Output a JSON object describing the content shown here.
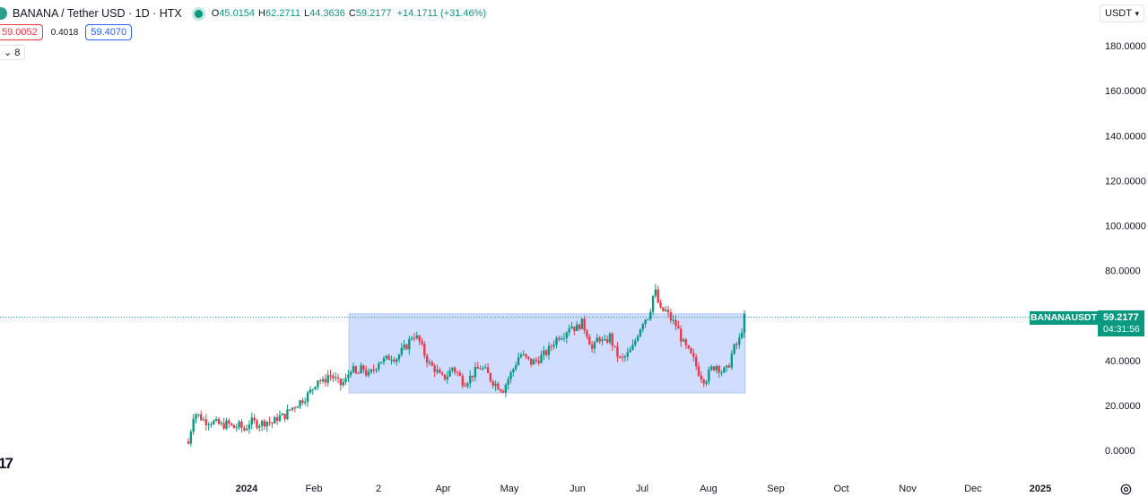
{
  "header": {
    "symbol_title": "BANANA / Tether USD · 1D · HTX",
    "ohlc": {
      "o_label": "O",
      "o_value": "45.0154",
      "h_label": "H",
      "h_value": "62.2711",
      "l_label": "L",
      "l_value": "44.3636",
      "c_label": "C",
      "c_value": "59.2177",
      "change": "+14.1711 (+31.46%)"
    }
  },
  "trade": {
    "sell_price": "59.0052",
    "spread": "0.4018",
    "buy_price": "59.4070"
  },
  "indicators_toggle": "8",
  "currency_button": "USDT",
  "price_tag": {
    "symbol": "BANANAUSDT",
    "price": "59.2177",
    "countdown": "04:31:56"
  },
  "logo_text": "17",
  "colors": {
    "up": "#089981",
    "down": "#f23645",
    "range_fill": "#2962ff",
    "grid": "#f0f3fa"
  },
  "icons": {
    "live": "live-dot-icon",
    "settings": "gear-icon",
    "caret": "chevron-down-icon",
    "symbol_logo": "banana-logo-icon"
  },
  "chart_data": {
    "type": "candlestick",
    "title": "BANANA / Tether USD · 1D · HTX",
    "y_axis": {
      "min": 0,
      "max": 180,
      "tick_labels": [
        "180.0000",
        "160.0000",
        "140.0000",
        "120.0000",
        "100.0000",
        "80.0000",
        "60.0000",
        "40.0000",
        "20.0000",
        "0.0000"
      ],
      "tick_values": [
        180,
        160,
        140,
        120,
        100,
        80,
        60,
        40,
        20,
        0
      ]
    },
    "x_axis": {
      "tick_labels": [
        "2024",
        "Feb",
        "2",
        "Apr",
        "May",
        "Jun",
        "Jul",
        "Aug",
        "Sep",
        "Oct",
        "Nov",
        "Dec",
        "2025"
      ]
    },
    "range_box": {
      "price_low": 25.5,
      "price_high": 60.8
    },
    "last_price": 59.2177,
    "grid": false,
    "series": [
      {
        "name": "BANANAUSDT",
        "close_path": [
          3,
          17,
          15,
          13,
          13,
          12,
          11,
          12,
          10,
          11,
          9,
          13,
          12,
          12,
          13,
          12,
          15,
          15,
          18,
          20,
          22,
          24,
          27,
          32,
          30,
          34,
          32,
          29,
          31,
          37,
          33,
          37,
          33,
          36,
          40,
          40,
          42,
          41,
          44,
          47,
          52,
          49,
          43,
          38,
          36,
          32,
          33,
          37,
          34,
          30,
          32,
          35,
          37,
          35,
          31,
          29,
          27,
          32,
          37,
          43,
          41,
          39,
          40,
          42,
          44,
          48,
          51,
          52,
          56,
          54,
          57,
          52,
          44,
          51,
          47,
          51,
          44,
          40,
          42,
          45,
          52,
          58,
          60,
          72,
          62,
          62,
          58,
          55,
          48,
          44,
          40,
          34,
          31,
          36,
          38,
          35,
          36,
          45,
          48,
          59
        ]
      }
    ]
  }
}
